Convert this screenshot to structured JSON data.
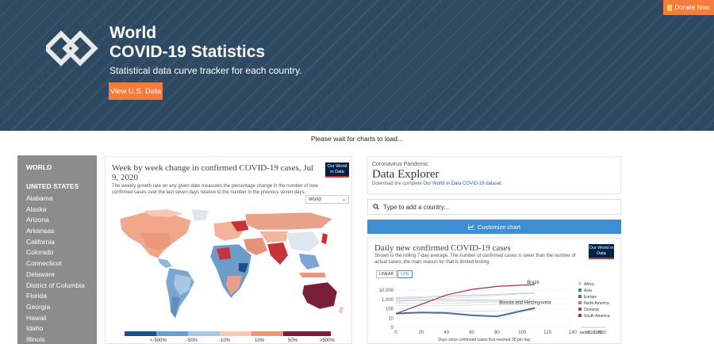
{
  "header": {
    "title_line1": "World",
    "title_line2": "COVID-19 Statistics",
    "tagline": "Statistical data curve tracker for each country.",
    "us_button": "View U.S. Data",
    "donate": "Donate Now"
  },
  "status": "Please wait for charts to load...",
  "sidebar": {
    "world": "WORLD",
    "section": "UNITED STATES",
    "items": [
      "Alabama",
      "Alaska",
      "Arizona",
      "Arkansas",
      "California",
      "Colorado",
      "Connecticut",
      "Delaware",
      "District of Columbia",
      "Florida",
      "Georgia",
      "Hawaii",
      "Idaho",
      "Illinois"
    ]
  },
  "map_card": {
    "title": "Week by week change in confirmed COVID-19 cases, Jul 9, 2020",
    "subtitle": "The weekly growth rate on any given date measures the percentage change in the number of new confirmed cases over the last seven days relative to the number in the previous seven days.",
    "badge": "Our World in Data",
    "region_select": "World",
    "legend": [
      "<-500%",
      "-50%",
      "-10%",
      "10%",
      "50%",
      ">500%"
    ]
  },
  "explorer": {
    "kicker": "Coronavirus Pandemic",
    "title": "Data Explorer",
    "sub_prefix": "Download the complete ",
    "sub_link": "Our World in Data",
    "sub_mid": " ",
    "sub_link2": "COVID-19 dataset",
    "sub_suffix": ".",
    "add_country": "Type to add a country...",
    "customize": "Customize chart"
  },
  "chart_card": {
    "title": "Daily new confirmed COVID-19 cases",
    "subtitle": "Shown is the rolling 7-day average. The number of confirmed cases is lower than the number of actual cases; the main reason for that is limited testing.",
    "badge": "Our World in Data",
    "toggle_linear": "LINEAR",
    "toggle_log": "LOG",
    "series_labels": [
      "Brazil",
      "Bosnia and Herzegovina"
    ],
    "legend": [
      {
        "name": "Africa",
        "color": "#e0c8c0"
      },
      {
        "name": "Asia",
        "color": "#3c8c7c"
      },
      {
        "name": "Europe",
        "color": "#4c6c9c"
      },
      {
        "name": "North America",
        "color": "#d07070"
      },
      {
        "name": "Oceania",
        "color": "#8c4c7c"
      },
      {
        "name": "South America",
        "color": "#a03050"
      }
    ],
    "date_start": "Jan 21, 2020",
    "date_end": "Jul 10, 2020"
  },
  "chart_data": {
    "type": "line",
    "title": "Daily new confirmed COVID-19 cases",
    "xlabel": "Days since confirmed cases first reached 30 per day",
    "ylabel": "",
    "yscale": "log",
    "x_ticks": [
      0,
      20,
      40,
      60,
      80,
      100,
      120,
      140
    ],
    "y_ticks": [
      0,
      10,
      100,
      1000,
      10000
    ],
    "y_tick_labels": [
      "0",
      "10",
      "100",
      "1,000",
      "10,000"
    ],
    "xlim": [
      0,
      140
    ],
    "series": [
      {
        "name": "Brazil",
        "color": "#a03050",
        "x": [
          0,
          20,
          40,
          60,
          80,
          100,
          110
        ],
        "y": [
          30,
          300,
          3000,
          12000,
          25000,
          35000,
          38000
        ]
      },
      {
        "name": "Bosnia and Herzegovina",
        "color": "#4c6c9c",
        "x": [
          0,
          20,
          40,
          60,
          80,
          100,
          110
        ],
        "y": [
          30,
          40,
          35,
          20,
          15,
          60,
          120
        ]
      }
    ]
  },
  "colors": {
    "accent": "#f47c3c",
    "header_bg": "#2e4a63",
    "sidebar_bg": "#8c8c8c",
    "button_blue": "#3f8ed4"
  }
}
